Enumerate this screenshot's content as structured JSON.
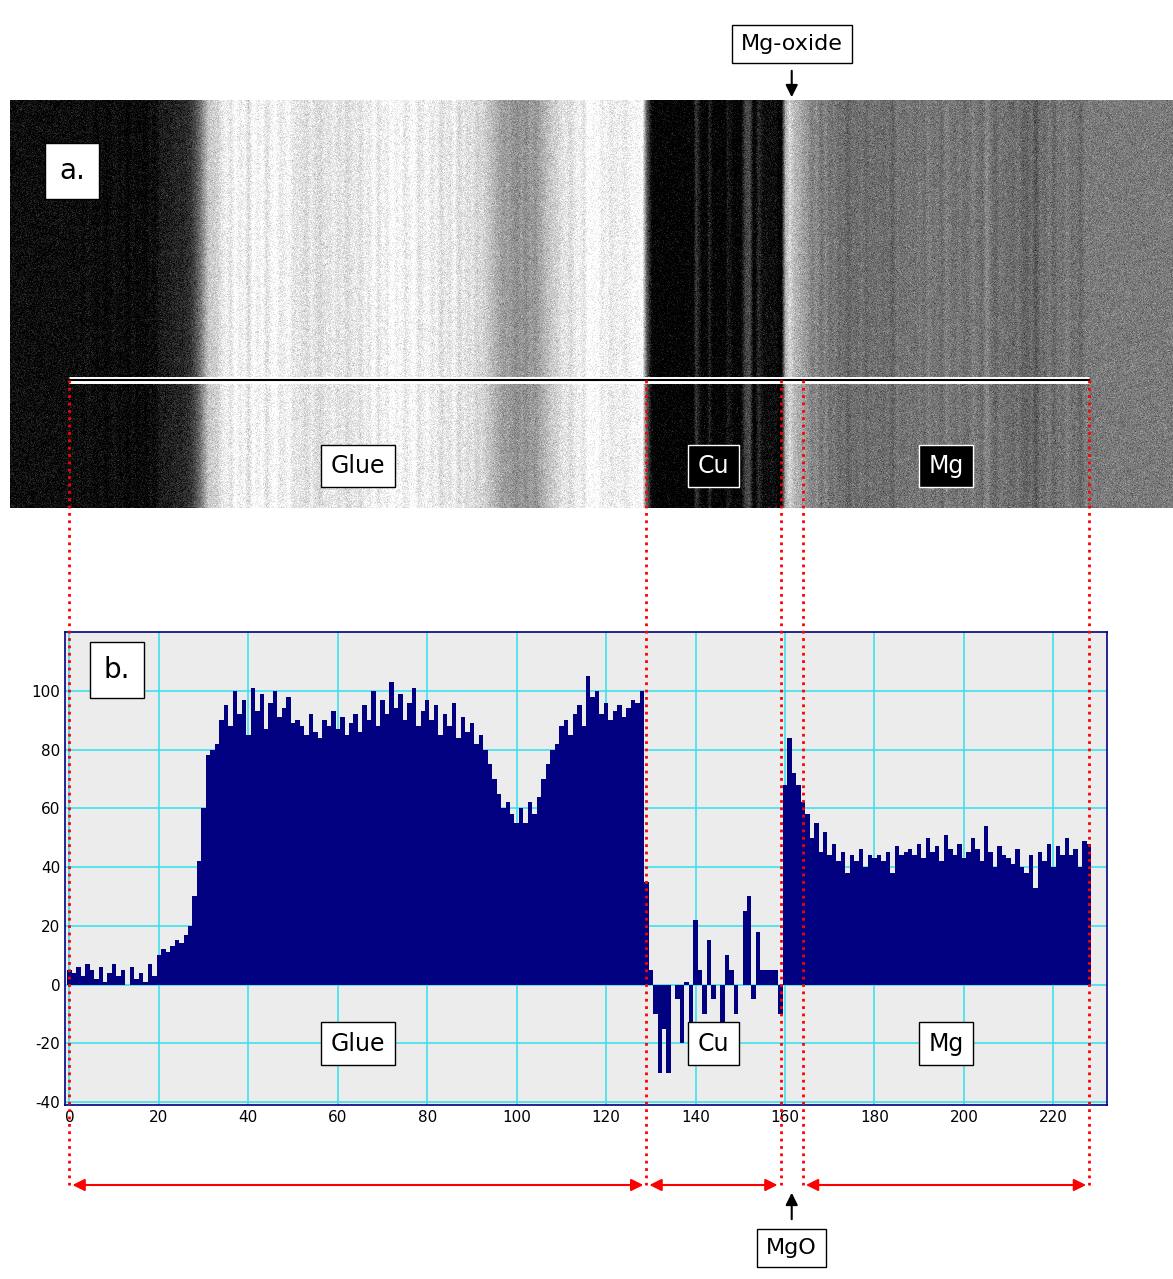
{
  "image": {
    "panel_label": "a.",
    "labels": [
      "Glue",
      "Cu",
      "Mg"
    ],
    "callout": "Mg-oxide"
  },
  "chart_data": {
    "type": "bar",
    "panel_label": "b.",
    "color": "#000080",
    "grid": true,
    "xlim": [
      -1,
      232
    ],
    "xticks": [
      0,
      20,
      40,
      60,
      80,
      100,
      120,
      140,
      160,
      180,
      200,
      220
    ],
    "ylim": [
      -41,
      120
    ],
    "yticks": [
      -40,
      -20,
      0,
      20,
      40,
      60,
      80,
      100
    ],
    "regions": [
      {
        "label": "Glue",
        "from": 0,
        "to": 129
      },
      {
        "label": "Cu",
        "from": 129,
        "to": 159
      },
      {
        "label": "MgO",
        "from": 159,
        "to": 164
      },
      {
        "label": "Mg",
        "from": 164,
        "to": 228
      }
    ],
    "x": [
      0,
      1,
      2,
      3,
      4,
      5,
      6,
      7,
      8,
      9,
      10,
      11,
      12,
      13,
      14,
      15,
      16,
      17,
      18,
      19,
      20,
      21,
      22,
      23,
      24,
      25,
      26,
      27,
      28,
      29,
      30,
      31,
      32,
      33,
      34,
      35,
      36,
      37,
      38,
      39,
      40,
      41,
      42,
      43,
      44,
      45,
      46,
      47,
      48,
      49,
      50,
      51,
      52,
      53,
      54,
      55,
      56,
      57,
      58,
      59,
      60,
      61,
      62,
      63,
      64,
      65,
      66,
      67,
      68,
      69,
      70,
      71,
      72,
      73,
      74,
      75,
      76,
      77,
      78,
      79,
      80,
      81,
      82,
      83,
      84,
      85,
      86,
      87,
      88,
      89,
      90,
      91,
      92,
      93,
      94,
      95,
      96,
      97,
      98,
      99,
      100,
      101,
      102,
      103,
      104,
      105,
      106,
      107,
      108,
      109,
      110,
      111,
      112,
      113,
      114,
      115,
      116,
      117,
      118,
      119,
      120,
      121,
      122,
      123,
      124,
      125,
      126,
      127,
      128,
      129,
      130,
      131,
      132,
      133,
      134,
      135,
      136,
      137,
      138,
      139,
      140,
      141,
      142,
      143,
      144,
      145,
      146,
      147,
      148,
      149,
      150,
      151,
      152,
      153,
      154,
      155,
      156,
      157,
      158,
      159,
      160,
      161,
      162,
      163,
      164,
      165,
      166,
      167,
      168,
      169,
      170,
      171,
      172,
      173,
      174,
      175,
      176,
      177,
      178,
      179,
      180,
      181,
      182,
      183,
      184,
      185,
      186,
      187,
      188,
      189,
      190,
      191,
      192,
      193,
      194,
      195,
      196,
      197,
      198,
      199,
      200,
      201,
      202,
      203,
      204,
      205,
      206,
      207,
      208,
      209,
      210,
      211,
      212,
      213,
      214,
      215,
      216,
      217,
      218,
      219,
      220,
      221,
      222,
      223,
      224,
      225,
      226,
      227,
      228
    ],
    "values": [
      5,
      4,
      6,
      3,
      7,
      5,
      2,
      6,
      1,
      4,
      7,
      3,
      5,
      0,
      6,
      2,
      4,
      1,
      7,
      3,
      10,
      12,
      11,
      13,
      15,
      14,
      17,
      20,
      30,
      42,
      60,
      78,
      80,
      82,
      90,
      95,
      88,
      100,
      92,
      97,
      85,
      101,
      93,
      99,
      87,
      96,
      100,
      91,
      94,
      98,
      89,
      90,
      88,
      85,
      92,
      86,
      84,
      90,
      88,
      93,
      87,
      91,
      85,
      89,
      92,
      86,
      95,
      90,
      100,
      88,
      97,
      92,
      103,
      94,
      99,
      90,
      96,
      101,
      88,
      93,
      97,
      90,
      95,
      85,
      92,
      88,
      96,
      84,
      91,
      86,
      89,
      82,
      85,
      80,
      75,
      70,
      65,
      60,
      62,
      58,
      55,
      60,
      55,
      62,
      58,
      64,
      70,
      75,
      80,
      82,
      88,
      90,
      85,
      92,
      95,
      88,
      105,
      98,
      100,
      92,
      96,
      90,
      93,
      95,
      91,
      94,
      97,
      96,
      100,
      35,
      5,
      -10,
      -30,
      -15,
      -30,
      0,
      -5,
      -20,
      1,
      -15,
      22,
      5,
      -10,
      15,
      -5,
      0,
      -15,
      10,
      5,
      -10,
      0,
      25,
      30,
      -5,
      18,
      5,
      5,
      5,
      5,
      -10,
      68,
      84,
      72,
      68,
      62,
      58,
      50,
      55,
      45,
      52,
      44,
      48,
      42,
      45,
      38,
      44,
      42,
      46,
      40,
      44,
      43,
      44,
      42,
      45,
      38,
      47,
      44,
      45,
      46,
      44,
      48,
      43,
      50,
      45,
      47,
      42,
      51,
      46,
      44,
      48,
      43,
      45,
      50,
      46,
      42,
      54,
      45,
      40,
      47,
      44,
      43,
      41,
      46,
      40,
      38,
      44,
      33,
      45,
      42,
      48,
      40,
      47,
      44,
      50,
      44,
      46,
      40,
      49,
      48
    ]
  }
}
